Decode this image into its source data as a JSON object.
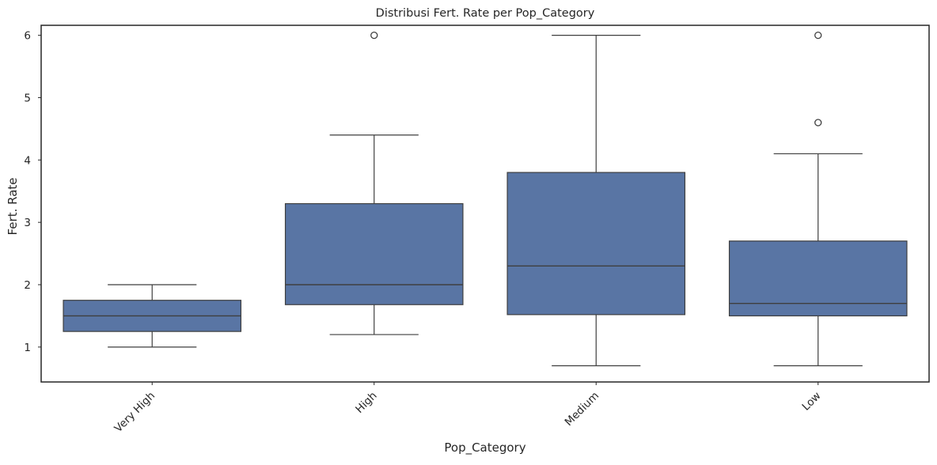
{
  "chart_data": {
    "type": "box",
    "title": "Distribusi Fert. Rate per Pop_Category",
    "xlabel": "Pop_Category",
    "ylabel": "Fert. Rate",
    "categories": [
      "Very High",
      "High",
      "Medium",
      "Low"
    ],
    "ylim": [
      0.44,
      6.16
    ],
    "yticks": [
      1,
      2,
      3,
      4,
      5,
      6
    ],
    "grid": false,
    "legend": "none",
    "box_color": "#5975a4",
    "line_color": "#3f3f3f",
    "boxes": [
      {
        "category": "Very High",
        "whisker_low": 1.0,
        "q1": 1.25,
        "median": 1.5,
        "q3": 1.75,
        "whisker_high": 2.0,
        "outliers": []
      },
      {
        "category": "High",
        "whisker_low": 1.2,
        "q1": 1.68,
        "median": 2.0,
        "q3": 3.3,
        "whisker_high": 4.4,
        "outliers": [
          6.0
        ]
      },
      {
        "category": "Medium",
        "whisker_low": 0.7,
        "q1": 1.52,
        "median": 2.3,
        "q3": 3.8,
        "whisker_high": 6.0,
        "outliers": []
      },
      {
        "category": "Low",
        "whisker_low": 0.7,
        "q1": 1.5,
        "median": 1.7,
        "q3": 2.7,
        "whisker_high": 4.1,
        "outliers": [
          4.6,
          6.0
        ]
      }
    ]
  }
}
